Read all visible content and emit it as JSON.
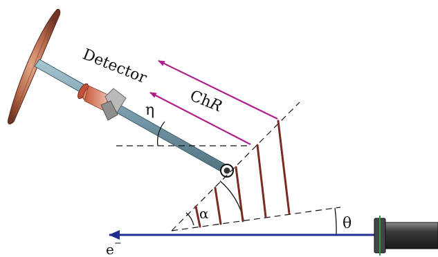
{
  "labels": {
    "detector": "Detector",
    "ch": "Ch",
    "r": "R",
    "eta": "η",
    "alpha": "α",
    "theta": "θ",
    "electron": "e",
    "electron_sup": "−"
  },
  "colors": {
    "beam": "#1f2e8f",
    "radiation": "#b0208a",
    "crystal_planes": "#7a2a22",
    "detector_arm": "#7da3b3",
    "dish": "#b06a4a",
    "dashed": "#111111"
  }
}
